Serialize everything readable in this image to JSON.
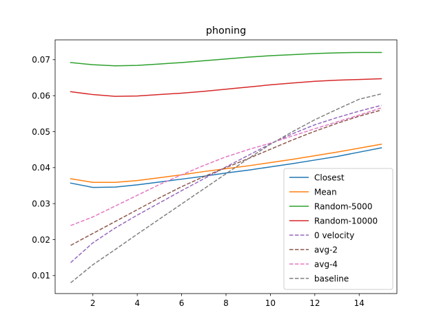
{
  "chart_data": {
    "type": "line",
    "title": "phoning",
    "xlabel": "",
    "ylabel": "",
    "xlim": [
      0.3,
      15.7
    ],
    "ylim": [
      0.005,
      0.0755
    ],
    "xticks": [
      2,
      4,
      6,
      8,
      10,
      12,
      14
    ],
    "yticks": [
      0.01,
      0.02,
      0.03,
      0.04,
      0.05,
      0.06,
      0.07
    ],
    "xtick_labels": [
      "2",
      "4",
      "6",
      "8",
      "10",
      "12",
      "14"
    ],
    "ytick_labels": [
      "0.01",
      "0.02",
      "0.03",
      "0.04",
      "0.05",
      "0.06",
      "0.07"
    ],
    "grid": false,
    "legend_position": "lower-right",
    "x": [
      1,
      2,
      3,
      4,
      5,
      6,
      7,
      8,
      9,
      10,
      11,
      12,
      13,
      14,
      15
    ],
    "series": [
      {
        "name": "Closest",
        "color": "#1f77b4",
        "dash": "solid",
        "values": [
          0.0357,
          0.0345,
          0.0346,
          0.0352,
          0.036,
          0.0368,
          0.0376,
          0.0385,
          0.0393,
          0.0402,
          0.0411,
          0.0421,
          0.0431,
          0.0443,
          0.0455
        ]
      },
      {
        "name": "Mean",
        "color": "#ff7f0e",
        "dash": "solid",
        "values": [
          0.0369,
          0.0359,
          0.0359,
          0.0364,
          0.0372,
          0.038,
          0.0389,
          0.0397,
          0.0405,
          0.0414,
          0.0423,
          0.0433,
          0.0443,
          0.0454,
          0.0465
        ]
      },
      {
        "name": "Random-5000",
        "color": "#2ca02c",
        "dash": "solid",
        "values": [
          0.0692,
          0.0686,
          0.0683,
          0.0684,
          0.0688,
          0.0692,
          0.0697,
          0.0702,
          0.0707,
          0.0711,
          0.0714,
          0.0717,
          0.0719,
          0.072,
          0.072
        ]
      },
      {
        "name": "Random-10000",
        "color": "#d62728",
        "dash": "solid",
        "values": [
          0.0611,
          0.0603,
          0.0598,
          0.0599,
          0.0603,
          0.0607,
          0.0612,
          0.0618,
          0.0624,
          0.063,
          0.0635,
          0.064,
          0.0643,
          0.0645,
          0.0647
        ]
      },
      {
        "name": "0 velocity",
        "color": "#9467bd",
        "dash": "dashed",
        "values": [
          0.0136,
          0.0191,
          0.0232,
          0.0268,
          0.0302,
          0.0336,
          0.0369,
          0.0402,
          0.0434,
          0.0466,
          0.0494,
          0.0519,
          0.0539,
          0.0557,
          0.0573
        ]
      },
      {
        "name": "avg-2",
        "color": "#8c564b",
        "dash": "dashed",
        "values": [
          0.0184,
          0.0217,
          0.025,
          0.0283,
          0.0316,
          0.0347,
          0.0375,
          0.04,
          0.0425,
          0.0451,
          0.0477,
          0.0501,
          0.0523,
          0.0543,
          0.056
        ]
      },
      {
        "name": "avg-4",
        "color": "#e377c2",
        "dash": "dashed",
        "values": [
          0.0239,
          0.0263,
          0.0293,
          0.0323,
          0.0353,
          0.038,
          0.0406,
          0.043,
          0.045,
          0.0468,
          0.0488,
          0.0508,
          0.0527,
          0.0546,
          0.0566
        ]
      },
      {
        "name": "baseline",
        "color": "#7f7f7f",
        "dash": "dashed",
        "values": [
          0.008,
          0.013,
          0.0172,
          0.0215,
          0.0257,
          0.0299,
          0.0341,
          0.0383,
          0.0425,
          0.0465,
          0.05,
          0.0533,
          0.0562,
          0.059,
          0.0605
        ]
      }
    ]
  }
}
